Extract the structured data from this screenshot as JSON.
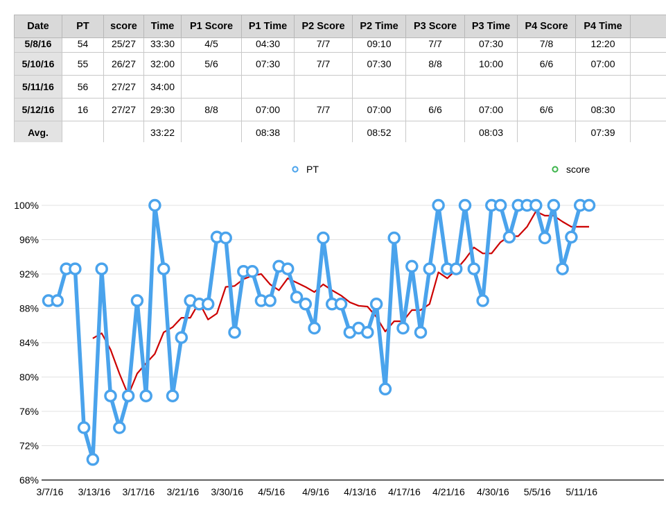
{
  "table": {
    "headers": [
      "Date",
      "PT",
      "score",
      "Time",
      "P1 Score",
      "P1 Time",
      "P2 Score",
      "P2 Time",
      "P3 Score",
      "P3 Time",
      "P4 Score",
      "P4 Time",
      ""
    ],
    "rows": [
      [
        "5/8/16",
        "54",
        "25/27",
        "33:30",
        "4/5",
        "04:30",
        "7/7",
        "09:10",
        "7/7",
        "07:30",
        "7/8",
        "12:20",
        ""
      ],
      [
        "5/10/16",
        "55",
        "26/27",
        "32:00",
        "5/6",
        "07:30",
        "7/7",
        "07:30",
        "8/8",
        "10:00",
        "6/6",
        "07:00",
        ""
      ],
      [
        "5/11/16",
        "56",
        "27/27",
        "34:00",
        "",
        "",
        "",
        "",
        "",
        "",
        "",
        "",
        ""
      ],
      [
        "5/12/16",
        "16",
        "27/27",
        "29:30",
        "8/8",
        "07:00",
        "7/7",
        "07:00",
        "6/6",
        "07:00",
        "6/6",
        "08:30",
        ""
      ],
      [
        "Avg.",
        "",
        "",
        "33:22",
        "",
        "08:38",
        "",
        "08:52",
        "",
        "08:03",
        "",
        "07:39",
        ""
      ]
    ]
  },
  "chart_data": {
    "type": "line",
    "ylim": [
      68,
      100
    ],
    "yticks": [
      68,
      72,
      76,
      80,
      84,
      88,
      92,
      96,
      100
    ],
    "ytick_labels": [
      "68%",
      "72%",
      "76%",
      "80%",
      "84%",
      "88%",
      "92%",
      "96%",
      "100%"
    ],
    "xtick_labels": [
      "3/7/16",
      "3/13/16",
      "3/17/16",
      "3/21/16",
      "3/30/16",
      "4/5/16",
      "4/9/16",
      "4/13/16",
      "4/17/16",
      "4/21/16",
      "4/30/16",
      "5/5/16",
      "5/11/16"
    ],
    "xtick_index": [
      0,
      5,
      10,
      15,
      20,
      25,
      30,
      35,
      40,
      45,
      50,
      55,
      60
    ],
    "legend": {
      "placement": "top",
      "entries": [
        "PT",
        "score"
      ]
    },
    "colors": {
      "pt": "#4aa3ec",
      "score": "#3cb44b",
      "trend": "#cc0000"
    },
    "series": [
      {
        "name": "PT",
        "values": [
          88.9,
          88.9,
          92.6,
          92.6,
          74.1,
          70.4,
          92.6,
          77.8,
          74.1,
          77.8,
          88.9,
          77.8,
          100,
          92.6,
          77.8,
          84.6,
          88.9,
          88.5,
          88.5,
          96.3,
          96.2,
          85.2,
          92.3,
          92.3,
          88.9,
          88.9,
          92.9,
          92.6,
          89.3,
          88.5,
          85.7,
          96.2,
          88.5,
          88.5,
          85.2,
          85.7,
          85.2,
          88.5,
          78.6,
          96.2,
          85.7,
          92.9,
          85.2,
          92.6,
          100,
          92.6,
          92.6,
          100,
          92.6,
          88.9,
          100,
          100,
          96.3,
          100,
          100,
          100,
          96.2,
          100,
          92.6,
          96.3,
          100,
          100
        ]
      },
      {
        "name": "",
        "values": [
          null,
          null,
          null,
          null,
          null,
          84.5,
          85.1,
          83.2,
          80.4,
          77.9,
          80.4,
          81.6,
          82.7,
          85.2,
          85.8,
          86.9,
          86.9,
          88.7,
          86.7,
          87.4,
          90.5,
          90.6,
          91.4,
          91.8,
          92.0,
          90.8,
          90.1,
          91.5,
          91.0,
          90.5,
          89.9,
          90.8,
          90.1,
          89.5,
          88.7,
          88.3,
          88.2,
          87.0,
          85.3,
          86.5,
          86.5,
          87.8,
          87.8,
          88.5,
          92.2,
          91.5,
          92.5,
          93.7,
          95.1,
          94.4,
          94.4,
          95.7,
          96.4,
          96.4,
          97.5,
          99.3,
          98.8,
          98.8,
          98.1,
          97.5,
          97.5,
          97.5
        ]
      }
    ]
  }
}
